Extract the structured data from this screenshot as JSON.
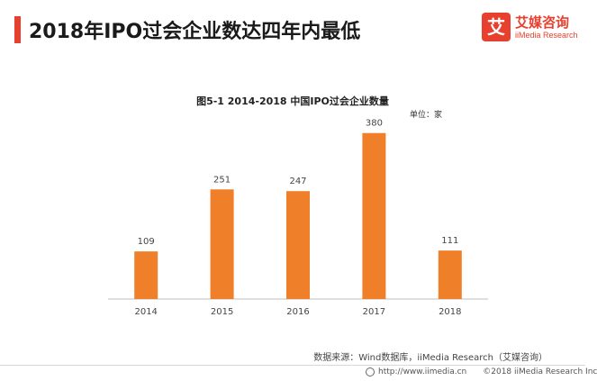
{
  "header": {
    "title": "2018年IPO过会企业数达四年内最低"
  },
  "logo": {
    "mark": "艾",
    "name_cn": "艾媒咨询",
    "name_en": "iiMedia Research"
  },
  "colors": {
    "accent": "#e8402e",
    "bar": "#f07f2a"
  },
  "chart_data": {
    "type": "bar",
    "title": "图5-1 2014-2018 中国IPO过会企业数量",
    "unit_label": "单位：家",
    "categories": [
      "2014",
      "2015",
      "2016",
      "2017",
      "2018"
    ],
    "values": [
      109,
      251,
      247,
      380,
      111
    ],
    "ylim": [
      0,
      400
    ],
    "xlabel": "",
    "ylabel": "",
    "grid": false
  },
  "source": "数据来源：Wind数据库，iiMedia Research（艾媒咨询）",
  "footer": {
    "url": "http://www.iimedia.cn",
    "copyright": "©2018  iiMedia Research  Inc"
  }
}
